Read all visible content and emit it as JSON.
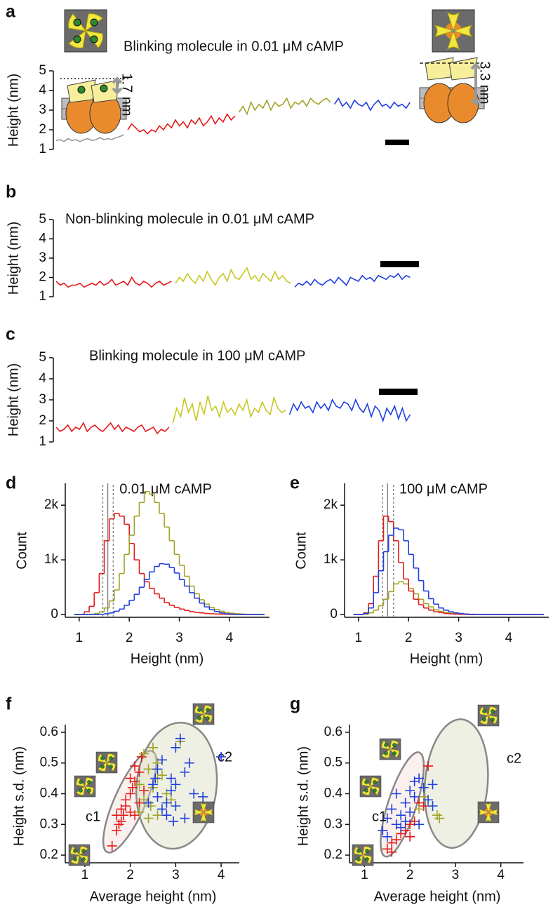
{
  "chart_data": [
    {
      "type": "trace",
      "panel_label": "a",
      "title": "Blinking molecule in 0.01 μM cAMP",
      "ylabel": "Height (nm)",
      "ylim": [
        1,
        5
      ],
      "yticks": [
        1,
        2,
        3,
        4,
        5
      ],
      "annotations": [
        "1.7 nm",
        "3.3 nm"
      ],
      "series": [
        {
          "color": "#999999",
          "values": [
            1.45,
            1.5,
            1.4,
            1.55,
            1.45,
            1.5,
            1.4,
            1.5,
            1.55,
            1.45,
            1.5,
            1.6,
            1.5,
            1.55,
            1.5,
            1.6,
            1.65,
            1.75
          ]
        },
        {
          "color": "#e41a1a",
          "values": [
            2.0,
            2.3,
            2.1,
            1.9,
            2.0,
            1.8,
            2.0,
            1.9,
            2.2,
            2.0,
            2.3,
            2.1,
            2.5,
            2.2,
            2.4,
            2.1,
            2.5,
            2.3,
            2.6,
            2.2,
            2.4,
            2.7,
            2.3,
            2.6,
            2.4,
            2.8,
            2.5,
            2.7
          ]
        },
        {
          "color": "#a3a32a",
          "values": [
            2.9,
            3.2,
            2.8,
            3.4,
            3.0,
            3.3,
            3.1,
            3.5,
            3.0,
            3.4,
            3.2,
            3.3,
            3.6,
            3.1,
            3.4,
            3.3,
            3.5,
            3.2,
            3.6,
            3.4,
            3.3,
            3.5,
            3.6,
            3.4
          ]
        },
        {
          "color": "#1f3fe0",
          "values": [
            3.3,
            3.6,
            3.2,
            3.4,
            3.1,
            3.5,
            3.3,
            3.2,
            3.4,
            3.0,
            3.3,
            3.5,
            3.2,
            3.3,
            3.1,
            3.4,
            3.2,
            3.3,
            3.1,
            3.4
          ]
        }
      ]
    },
    {
      "type": "trace",
      "panel_label": "b",
      "title": "Non-blinking molecule in 0.01 μM cAMP",
      "ylabel": "Height (nm)",
      "ylim": [
        1,
        5
      ],
      "yticks": [
        1,
        2,
        3,
        4,
        5
      ],
      "series": [
        {
          "color": "#e41a1a",
          "values": [
            1.8,
            1.6,
            1.7,
            1.5,
            1.6,
            1.6,
            1.7,
            1.5,
            1.6,
            1.7,
            1.6,
            1.8,
            1.6,
            1.7,
            1.9,
            1.6,
            1.7,
            1.8,
            1.6,
            2.0,
            1.7,
            1.6,
            1.8,
            1.7,
            1.5,
            1.7,
            1.8,
            1.6,
            1.7,
            1.8
          ]
        },
        {
          "color": "#c8c823",
          "values": [
            1.7,
            2.0,
            1.8,
            2.2,
            1.9,
            1.7,
            2.1,
            1.8,
            2.3,
            1.9,
            1.6,
            2.0,
            2.2,
            1.8,
            2.4,
            2.0,
            1.9,
            2.2,
            2.5,
            1.9,
            2.1,
            1.8,
            2.2,
            2.0,
            1.8,
            2.3,
            1.9,
            2.1,
            1.8,
            1.7
          ]
        },
        {
          "color": "#1f3fe0",
          "values": [
            1.5,
            1.7,
            1.6,
            1.8,
            1.6,
            1.9,
            1.7,
            1.6,
            1.8,
            1.9,
            1.7,
            2.0,
            1.8,
            1.6,
            2.0,
            1.9,
            1.8,
            2.1,
            1.9,
            2.0,
            1.8,
            2.1,
            2.0,
            1.9,
            2.1,
            2.0,
            2.2,
            1.9,
            2.1,
            2.0
          ]
        }
      ]
    },
    {
      "type": "trace",
      "panel_label": "c",
      "title": "Blinking molecule in 100 μM cAMP",
      "ylabel": "Height (nm)",
      "ylim": [
        1,
        5
      ],
      "yticks": [
        1,
        2,
        3,
        4,
        5
      ],
      "series": [
        {
          "color": "#e41a1a",
          "values": [
            1.7,
            1.5,
            1.6,
            1.8,
            1.5,
            1.7,
            1.6,
            1.9,
            1.5,
            1.7,
            1.8,
            1.6,
            1.5,
            1.7,
            1.9,
            1.6,
            1.8,
            1.5,
            1.7,
            1.6,
            1.5,
            1.7,
            1.8,
            1.5,
            1.6,
            1.7,
            1.4,
            1.6,
            1.5,
            1.7
          ]
        },
        {
          "color": "#c8c823",
          "values": [
            1.9,
            2.6,
            2.2,
            3.1,
            2.4,
            2.8,
            2.0,
            2.9,
            2.3,
            3.2,
            2.5,
            2.7,
            2.2,
            2.9,
            2.4,
            2.6,
            2.3,
            2.8,
            2.5,
            3.0,
            2.2,
            2.6,
            2.4,
            2.9,
            2.5,
            2.3,
            3.1,
            2.6,
            2.4,
            2.5
          ]
        },
        {
          "color": "#1f3fe0",
          "values": [
            2.3,
            2.8,
            2.5,
            2.9,
            2.6,
            2.7,
            2.4,
            2.9,
            2.6,
            2.8,
            2.5,
            3.0,
            2.7,
            2.6,
            2.9,
            2.8,
            2.5,
            3.0,
            2.6,
            2.4,
            2.8,
            2.2,
            2.7,
            2.5,
            2.0,
            2.6,
            2.3,
            2.7,
            2.1,
            2.6,
            2.0,
            2.3
          ]
        }
      ]
    },
    {
      "type": "histogram",
      "panel_label": "d",
      "title": "0.01 μM cAMP",
      "xlabel": "Height (nm)",
      "ylabel": "Count",
      "xlim": [
        0.75,
        4.8
      ],
      "ylim": [
        -50,
        2400
      ],
      "xticks": [
        1,
        2,
        3,
        4
      ],
      "yticks": [
        0,
        {
          "value": 1000,
          "label": "1k"
        },
        {
          "value": 2000,
          "label": "2k"
        }
      ],
      "vlines": [
        {
          "value": 1.47,
          "style": "dashed"
        },
        {
          "value": 1.57,
          "style": "solid"
        },
        {
          "value": 1.68,
          "style": "dashed"
        }
      ],
      "bins": [
        0.9,
        1,
        1.1,
        1.2,
        1.3,
        1.4,
        1.5,
        1.6,
        1.7,
        1.8,
        1.9,
        2,
        2.1,
        2.2,
        2.3,
        2.4,
        2.5,
        2.6,
        2.7,
        2.8,
        2.9,
        3,
        3.1,
        3.2,
        3.3,
        3.4,
        3.5,
        3.6,
        3.7,
        3.8,
        3.9,
        4,
        4.1,
        4.2,
        4.3,
        4.4,
        4.5,
        4.6,
        4.7
      ],
      "series": [
        {
          "color": "#e41a1a",
          "values": [
            0,
            0,
            50,
            150,
            400,
            750,
            1350,
            1750,
            1850,
            1800,
            1650,
            1300,
            1000,
            750,
            600,
            480,
            380,
            300,
            220,
            170,
            130,
            100,
            75,
            55,
            40,
            30,
            20,
            15,
            10,
            8,
            5,
            3,
            2,
            0,
            0,
            0,
            0,
            0
          ]
        },
        {
          "color": "#a3a32a",
          "values": [
            0,
            0,
            0,
            5,
            20,
            50,
            120,
            250,
            450,
            750,
            1100,
            1450,
            1800,
            2050,
            2250,
            2200,
            2050,
            1850,
            1600,
            1350,
            1100,
            900,
            700,
            520,
            380,
            270,
            190,
            130,
            90,
            60,
            40,
            25,
            15,
            10,
            5,
            3,
            0,
            0
          ]
        },
        {
          "color": "#1f3fe0",
          "values": [
            0,
            0,
            0,
            0,
            0,
            5,
            15,
            30,
            60,
            100,
            170,
            260,
            370,
            500,
            640,
            780,
            880,
            930,
            920,
            860,
            760,
            640,
            520,
            400,
            300,
            210,
            140,
            90,
            55,
            30,
            15,
            8,
            4,
            2,
            0,
            0,
            0,
            0
          ]
        }
      ]
    },
    {
      "type": "histogram",
      "panel_label": "e",
      "title": "100 μM cAMP",
      "xlabel": "Height (nm)",
      "ylabel": "Count",
      "xlim": [
        0.75,
        4.8
      ],
      "ylim": [
        -50,
        2400
      ],
      "xticks": [
        1,
        2,
        3,
        4
      ],
      "yticks": [
        0,
        {
          "value": 1000,
          "label": "1k"
        },
        {
          "value": 2000,
          "label": "2k"
        }
      ],
      "vlines": [
        {
          "value": 1.48,
          "style": "dashed"
        },
        {
          "value": 1.58,
          "style": "solid"
        },
        {
          "value": 1.7,
          "style": "dashed"
        }
      ],
      "bins": [
        0.9,
        1,
        1.1,
        1.2,
        1.3,
        1.4,
        1.5,
        1.6,
        1.7,
        1.8,
        1.9,
        2,
        2.1,
        2.2,
        2.3,
        2.4,
        2.5,
        2.6,
        2.7,
        2.8,
        2.9,
        3,
        3.1,
        3.2,
        3.3,
        3.4,
        3.5,
        3.6,
        3.7,
        3.8,
        3.9,
        4,
        4.1,
        4.2,
        4.3,
        4.4,
        4.5,
        4.6,
        4.7
      ],
      "series": [
        {
          "color": "#a3a32a",
          "values": [
            0,
            0,
            5,
            30,
            80,
            160,
            280,
            420,
            560,
            600,
            560,
            480,
            380,
            280,
            200,
            140,
            90,
            60,
            40,
            25,
            15,
            8,
            4,
            0,
            0,
            0,
            0,
            0,
            0,
            0,
            0,
            0,
            0,
            0,
            0,
            0,
            0,
            0
          ]
        },
        {
          "color": "#e41a1a",
          "values": [
            0,
            0,
            30,
            200,
            700,
            1350,
            1800,
            1700,
            1350,
            950,
            650,
            430,
            280,
            180,
            120,
            80,
            50,
            35,
            20,
            12,
            8,
            5,
            3,
            0,
            0,
            0,
            0,
            0,
            0,
            0,
            0,
            0,
            0,
            0,
            0,
            0,
            0,
            0
          ]
        },
        {
          "color": "#1f3fe0",
          "values": [
            0,
            0,
            20,
            120,
            400,
            800,
            1150,
            1450,
            1580,
            1550,
            1350,
            1100,
            850,
            620,
            430,
            290,
            190,
            120,
            80,
            50,
            30,
            20,
            10,
            5,
            0,
            0,
            0,
            0,
            0,
            0,
            0,
            0,
            0,
            0,
            0,
            0,
            0,
            0
          ]
        }
      ]
    },
    {
      "type": "scatter",
      "panel_label": "f",
      "xlabel": "Average height (nm)",
      "ylabel": "Height s.d. (nm)",
      "xlim": [
        0.6,
        4.4
      ],
      "ylim": [
        0.175,
        0.625
      ],
      "xticks": [
        1,
        2,
        3,
        4
      ],
      "yticks": [
        0.2,
        0.3,
        0.4,
        0.5,
        0.6
      ],
      "ellipses": [
        {
          "label": "c1",
          "color": "#e41a1a",
          "center": [
            1.99,
            0.374
          ],
          "radii": [
            0.34,
            0.18
          ]
        },
        {
          "label": "c2",
          "color": "#a3a32a",
          "center": [
            3.02,
            0.426
          ],
          "radii": [
            0.88,
            0.206
          ]
        }
      ],
      "series": [
        {
          "color": "#e41a1a",
          "x": [
            1.6,
            1.7,
            1.75,
            1.8,
            1.7,
            1.8,
            1.9,
            2.0,
            2.1,
            1.9,
            2.0,
            2.05,
            2.1,
            2.0,
            2.2,
            2.1,
            2.3,
            2.2,
            1.85,
            2.25
          ],
          "values": [
            0.23,
            0.28,
            0.3,
            0.31,
            0.33,
            0.35,
            0.36,
            0.34,
            0.33,
            0.38,
            0.4,
            0.42,
            0.44,
            0.45,
            0.47,
            0.49,
            0.41,
            0.37,
            0.33,
            0.52
          ]
        },
        {
          "color": "#a3a32a",
          "x": [
            2.2,
            2.4,
            2.6,
            2.3,
            2.5,
            2.6,
            2.4,
            2.3,
            2.5,
            2.6,
            2.8,
            2.9,
            2.2,
            2.7,
            3.1,
            2.45,
            3.6
          ],
          "values": [
            0.34,
            0.32,
            0.33,
            0.38,
            0.42,
            0.45,
            0.48,
            0.53,
            0.55,
            0.5,
            0.4,
            0.38,
            0.43,
            0.46,
            0.57,
            0.36,
            0.39
          ]
        },
        {
          "color": "#1f3fe0",
          "x": [
            2.4,
            2.6,
            2.7,
            2.8,
            2.9,
            3.0,
            3.2,
            2.6,
            2.7,
            2.9,
            3.0,
            3.1,
            3.2,
            3.3,
            3.4,
            3.6,
            4.0,
            2.5,
            2.8,
            3.0,
            2.95,
            2.55
          ],
          "values": [
            0.37,
            0.39,
            0.35,
            0.33,
            0.41,
            0.43,
            0.32,
            0.48,
            0.51,
            0.45,
            0.55,
            0.58,
            0.47,
            0.5,
            0.4,
            0.39,
            0.52,
            0.43,
            0.37,
            0.36,
            0.31,
            0.45
          ]
        }
      ]
    },
    {
      "type": "scatter",
      "panel_label": "g",
      "xlabel": "Average height (nm)",
      "ylabel": "Height s.d. (nm)",
      "xlim": [
        0.7,
        4.5
      ],
      "ylim": [
        0.175,
        0.625
      ],
      "xticks": [
        1,
        2,
        3,
        4
      ],
      "yticks": [
        0.2,
        0.3,
        0.4,
        0.5,
        0.6
      ],
      "ellipses": [
        {
          "label": "c1",
          "color": "#e41a1a",
          "center": [
            1.83,
            0.365
          ],
          "radii": [
            0.31,
            0.178
          ]
        },
        {
          "label": "c2",
          "color": "#a3a32a",
          "center": [
            3.02,
            0.433
          ],
          "radii": [
            0.69,
            0.21
          ]
        }
      ],
      "series": [
        {
          "color": "#e41a1a",
          "x": [
            1.5,
            1.6,
            1.7,
            1.8,
            1.9,
            2.0,
            2.1,
            2.2,
            2.4,
            2.3,
            1.6,
            2.0
          ],
          "values": [
            0.22,
            0.21,
            0.25,
            0.27,
            0.28,
            0.3,
            0.31,
            0.37,
            0.49,
            0.36,
            0.24,
            0.26
          ]
        },
        {
          "color": "#a3a32a",
          "x": [
            2.6,
            2.65,
            2.3,
            2.2
          ],
          "values": [
            0.33,
            0.32,
            0.39,
            0.35
          ]
        },
        {
          "color": "#1f3fe0",
          "x": [
            1.4,
            1.5,
            1.6,
            1.7,
            1.8,
            1.9,
            2.0,
            2.1,
            2.2,
            2.1,
            2.3,
            2.5,
            2.5,
            1.7,
            1.9,
            2.0,
            2.2,
            1.5,
            1.8,
            2.4
          ],
          "values": [
            0.28,
            0.32,
            0.35,
            0.3,
            0.33,
            0.37,
            0.41,
            0.44,
            0.45,
            0.39,
            0.42,
            0.43,
            0.36,
            0.4,
            0.31,
            0.34,
            0.3,
            0.26,
            0.29,
            0.38
          ]
        }
      ]
    }
  ]
}
